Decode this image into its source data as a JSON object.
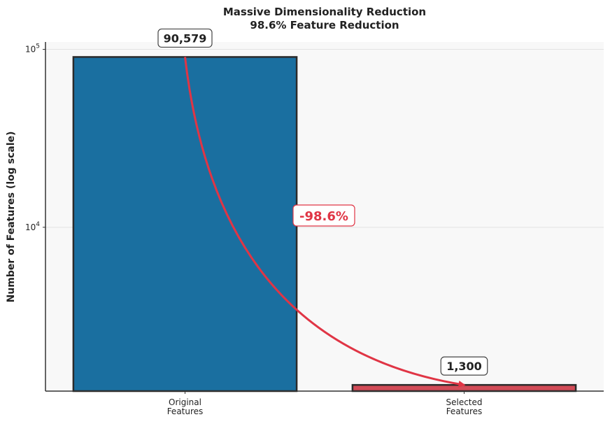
{
  "chart_data": {
    "type": "bar",
    "title": [
      "Massive Dimensionality Reduction",
      "98.6% Feature Reduction"
    ],
    "ylabel": "Number of Features (log scale)",
    "xlabel": "",
    "yscale": "log",
    "ylim": [
      1200,
      110000
    ],
    "yticks": [
      10000,
      100000
    ],
    "categories": [
      [
        "Original",
        "Features"
      ],
      [
        "Selected",
        "Features"
      ]
    ],
    "values": [
      90579,
      1300
    ],
    "value_labels": [
      "90,579",
      "1,300"
    ],
    "colors": [
      "#1a6fa0",
      "#d24b57"
    ],
    "bar_edge_color": "#2b2b2b",
    "annotation": {
      "text": "-98.6%",
      "color": "#e03545"
    },
    "arrow_color": "#e03545",
    "background": "#f8f8f8",
    "grid": true,
    "legend": "none"
  }
}
